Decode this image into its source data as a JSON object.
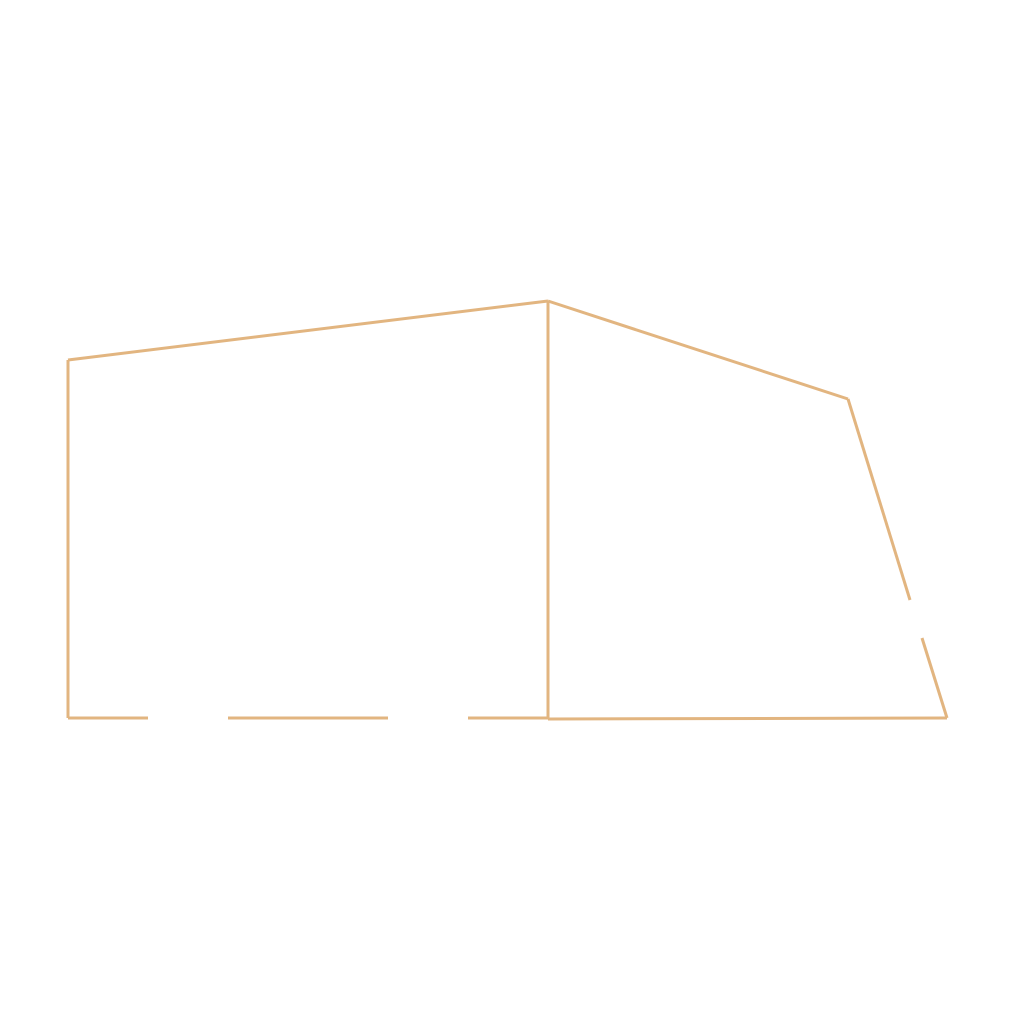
{
  "diagram": {
    "line_color": "#e2b580",
    "background_color": "#ffffff"
  }
}
